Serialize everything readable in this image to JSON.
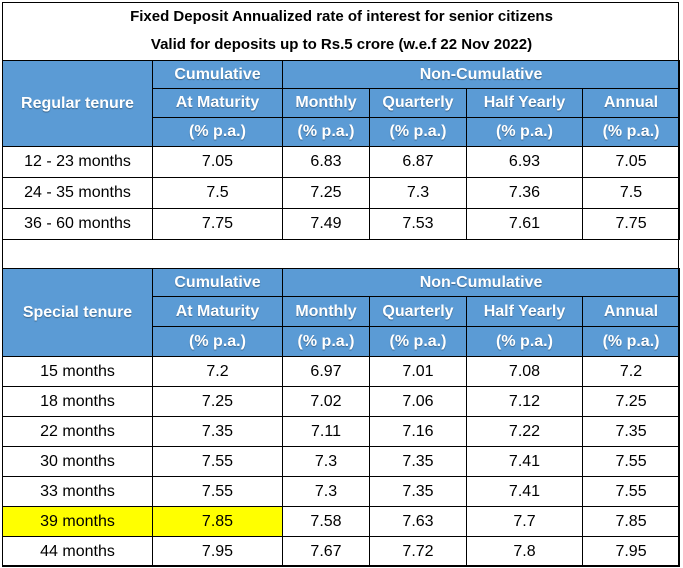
{
  "title_line1": "Fixed Deposit Annualized rate of interest for senior citizens",
  "title_line2": "Valid for deposits up to Rs.5 crore (w.e.f 22 Nov 2022)",
  "headers": {
    "cumulative": "Cumulative",
    "non_cumulative": "Non-Cumulative",
    "at_maturity": "At Maturity",
    "monthly": "Monthly",
    "quarterly": "Quarterly",
    "half_yearly": "Half Yearly",
    "annual": "Annual",
    "pct": "(% p.a.)"
  },
  "colors": {
    "header_bg": "#5b9bd5",
    "highlight": "#ffff00"
  },
  "regular": {
    "label": "Regular tenure",
    "rows": [
      {
        "tenure": "12 - 23 months",
        "cumulative": "7.05",
        "monthly": "6.83",
        "quarterly": "6.87",
        "half_yearly": "6.93",
        "annual": "7.05"
      },
      {
        "tenure": "24 - 35 months",
        "cumulative": "7.5",
        "monthly": "7.25",
        "quarterly": "7.3",
        "half_yearly": "7.36",
        "annual": "7.5"
      },
      {
        "tenure": "36 - 60 months",
        "cumulative": "7.75",
        "monthly": "7.49",
        "quarterly": "7.53",
        "half_yearly": "7.61",
        "annual": "7.75"
      }
    ]
  },
  "special": {
    "label": "Special tenure",
    "rows": [
      {
        "tenure": "15 months",
        "cumulative": "7.2",
        "monthly": "6.97",
        "quarterly": "7.01",
        "half_yearly": "7.08",
        "annual": "7.2"
      },
      {
        "tenure": "18 months",
        "cumulative": "7.25",
        "monthly": "7.02",
        "quarterly": "7.06",
        "half_yearly": "7.12",
        "annual": "7.25"
      },
      {
        "tenure": "22 months",
        "cumulative": "7.35",
        "monthly": "7.11",
        "quarterly": "7.16",
        "half_yearly": "7.22",
        "annual": "7.35"
      },
      {
        "tenure": "30 months",
        "cumulative": "7.55",
        "monthly": "7.3",
        "quarterly": "7.35",
        "half_yearly": "7.41",
        "annual": "7.55"
      },
      {
        "tenure": "33 months",
        "cumulative": "7.55",
        "monthly": "7.3",
        "quarterly": "7.35",
        "half_yearly": "7.41",
        "annual": "7.55"
      },
      {
        "tenure": "39 months",
        "cumulative": "7.85",
        "monthly": "7.58",
        "quarterly": "7.63",
        "half_yearly": "7.7",
        "annual": "7.85",
        "highlighted": true
      },
      {
        "tenure": "44 months",
        "cumulative": "7.95",
        "monthly": "7.67",
        "quarterly": "7.72",
        "half_yearly": "7.8",
        "annual": "7.95"
      }
    ]
  }
}
